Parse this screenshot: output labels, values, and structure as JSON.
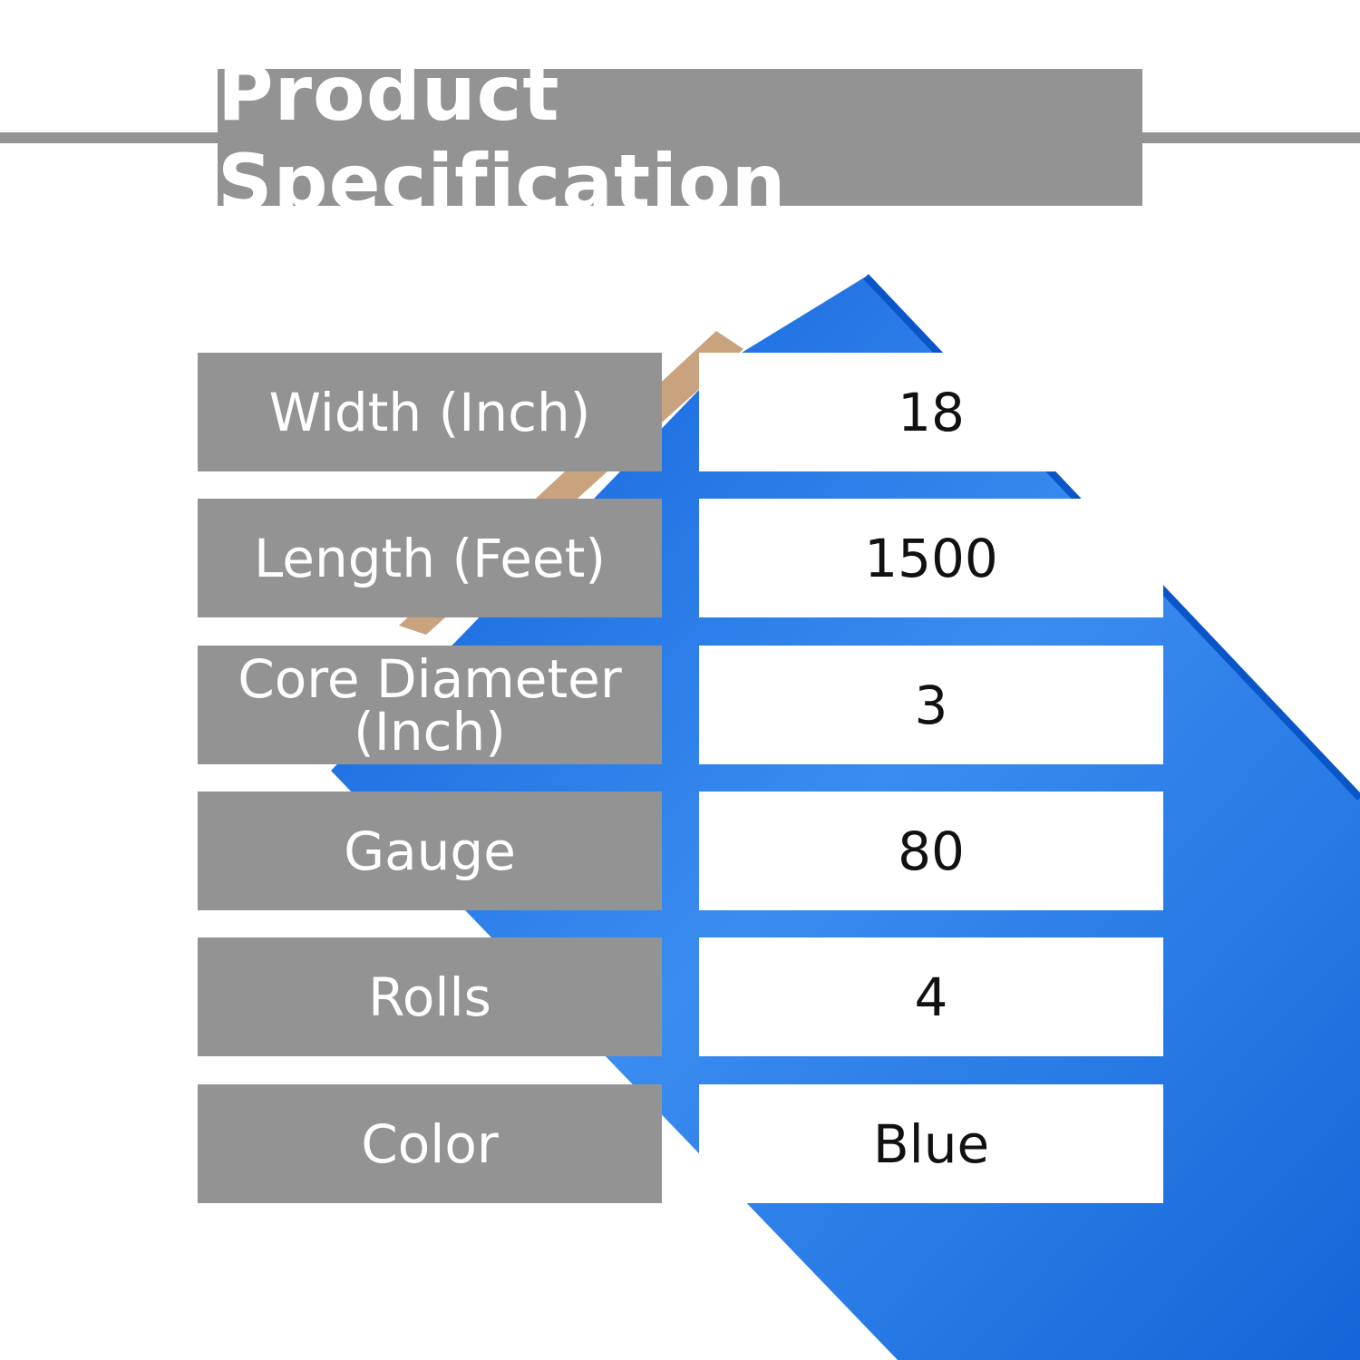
{
  "title": "Product Specification",
  "colors": {
    "banner": "#939393",
    "product": "#1a6fe0",
    "core": "#c9a27e"
  },
  "image": {
    "subject": "blue stretch wrap film roll",
    "icon": "stretch-wrap-roll"
  },
  "specs": [
    {
      "label": "Width (Inch)",
      "value": "18"
    },
    {
      "label": "Length (Feet)",
      "value": "1500"
    },
    {
      "label": "Core Diameter (Inch)",
      "value": "3"
    },
    {
      "label": "Gauge",
      "value": "80"
    },
    {
      "label": "Rolls",
      "value": "4"
    },
    {
      "label": "Color",
      "value": "Blue"
    }
  ]
}
